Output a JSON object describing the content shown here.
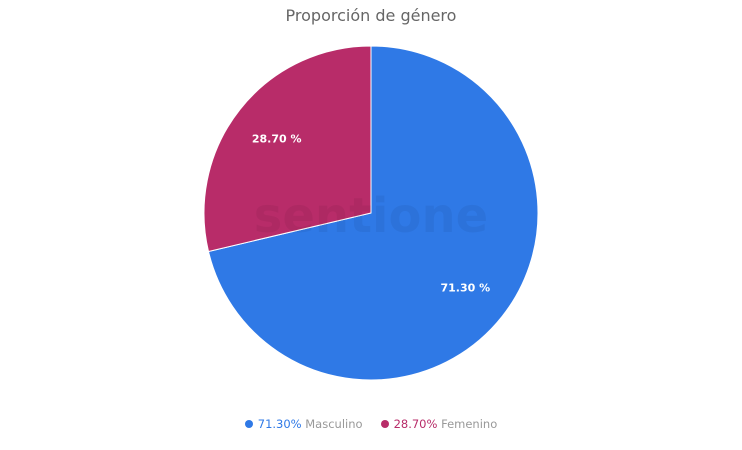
{
  "chart_data": {
    "type": "pie",
    "title": "Proporción de género",
    "slices": [
      {
        "name": "Masculino",
        "value": 71.3,
        "label": "71.30 %",
        "legend_value": "71.30%",
        "color": "#2f79e6"
      },
      {
        "name": "Femenino",
        "value": 28.7,
        "label": "28.70 %",
        "legend_value": "28.70%",
        "color": "#b82c69"
      }
    ],
    "legend_position": "bottom",
    "start_angle": "top, clockwise"
  },
  "watermark": "sentione"
}
